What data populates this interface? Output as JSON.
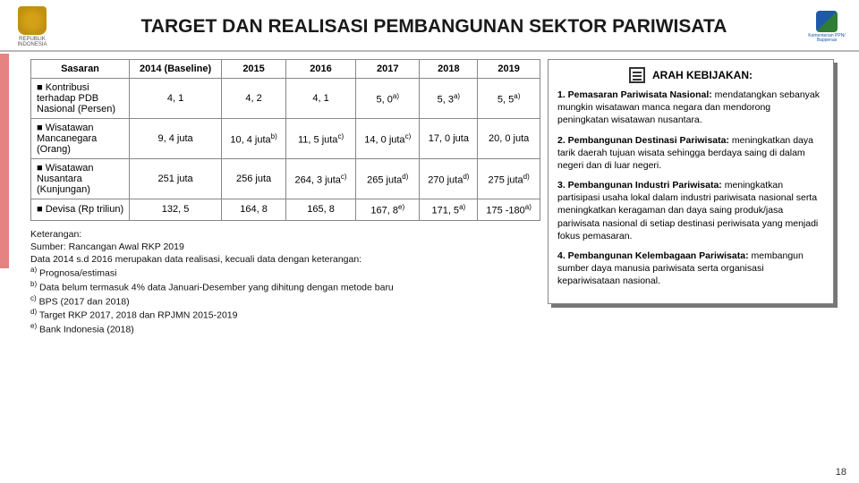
{
  "header": {
    "title": "TARGET DAN REALISASI PEMBANGUNAN SEKTOR PARIWISATA",
    "logo_left_line1": "REPUBLIK",
    "logo_left_line2": "INDONESIA",
    "logo_right_line1": "Kementerian PPN/",
    "logo_right_line2": "Bappenas"
  },
  "table": {
    "columns": [
      "Sasaran",
      "2014 (Baseline)",
      "2015",
      "2016",
      "2017",
      "2018",
      "2019"
    ],
    "rows": [
      {
        "label": "Kontribusi terhadap PDB Nasional (Persen)",
        "cells": [
          "4, 1",
          "4, 2",
          "4, 1",
          "5, 0<sup>a)</sup>",
          "5, 3<sup>a)</sup>",
          "5, 5<sup>a)</sup>"
        ]
      },
      {
        "label": "Wisatawan Mancanegara (Orang)",
        "cells": [
          "9, 4 juta",
          "10, 4 juta<sup>b)</sup>",
          "11, 5 juta<sup>c)</sup>",
          "14, 0 juta<sup>c)</sup>",
          "17, 0 juta",
          "20, 0 juta"
        ]
      },
      {
        "label": "Wisatawan Nusantara (Kunjungan)",
        "cells": [
          "251 juta",
          "256 juta",
          "264, 3 juta<sup>c)</sup>",
          "265 juta<sup>d)</sup>",
          "270 juta<sup>d)</sup>",
          "275 juta<sup>d)</sup>"
        ]
      },
      {
        "label": "Devisa (Rp triliun)",
        "cells": [
          "132, 5",
          "164, 8",
          "165, 8",
          "167, 8<sup>e)</sup>",
          "171, 5<sup>a)</sup>",
          "175 -180<sup>a)</sup>"
        ]
      }
    ]
  },
  "notes": {
    "heading": "Keterangan:",
    "lines": [
      "Sumber: Rancangan Awal RKP 2019",
      "Data 2014 s.d 2016 merupakan data realisasi, kecuali data dengan keterangan:",
      "<sup>a)</sup> Prognosa/estimasi",
      "<sup>b)</sup> Data belum termasuk 4% data Januari-Desember yang dihitung dengan metode baru",
      "<sup>c)</sup> BPS (2017 dan 2018)",
      "<sup>d)</sup> Target RKP 2017, 2018 dan RPJMN 2015-2019",
      "<sup>e)</sup> Bank Indonesia (2018)"
    ]
  },
  "policy": {
    "heading": "ARAH KEBIJAKAN:",
    "items": [
      {
        "title": "Pemasaran Pariwisata Nasional:",
        "body": "mendatangkan sebanyak mungkin wisatawan manca negara dan mendorong peningkatan wisatawan nusantara."
      },
      {
        "title": "Pembangunan Destinasi Pariwisata:",
        "body": "meningkatkan daya tarik daerah tujuan wisata sehingga berdaya saing di dalam negeri dan di luar negeri."
      },
      {
        "title": "Pembangunan Industri Pariwisata:",
        "body": "meningkatkan partisipasi usaha lokal dalam industri pariwisata nasional serta meningkatkan keragaman dan daya saing produk/jasa pariwisata nasional di setiap destinasi periwisata yang menjadi fokus pemasaran."
      },
      {
        "title": "Pembangunan Kelembagaan Pariwisata:",
        "body": "membangun sumber daya manusia pariwisata serta organisasi kepariwisataan nasional."
      }
    ]
  },
  "pagenum": "18",
  "colors": {
    "border": "#888888",
    "shadow": "#777777",
    "text": "#111111"
  }
}
